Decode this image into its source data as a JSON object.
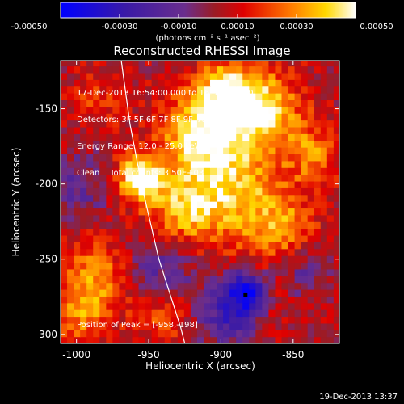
{
  "chart_data": {
    "type": "heatmap",
    "title": "Reconstructed RHESSI Image",
    "xlabel": "Heliocentric X (arcsec)",
    "ylabel": "Heliocentric Y (arcsec)",
    "xlim": [
      -1011,
      -818
    ],
    "ylim": [
      -306,
      -118
    ],
    "x_ticks": [
      -1000,
      -950,
      -900,
      -850
    ],
    "y_ticks": [
      -300,
      -250,
      -200,
      -150
    ],
    "x_tick_labels": [
      "-1000",
      "-950",
      "-900",
      "-850"
    ],
    "y_tick_labels": [
      "-300",
      "-250",
      "-200",
      "-150"
    ],
    "colorbar": {
      "range": [
        -0.0005,
        0.0005
      ],
      "ticks": [
        -0.0005,
        -0.0003,
        -0.0001,
        0.0001,
        0.0003,
        0.0005
      ],
      "tick_labels": [
        "-0.00050",
        "-0.00030",
        "-0.00010",
        "0.00010",
        "0.00030",
        "0.00050"
      ],
      "unit_label": "(photons cm⁻² s⁻¹ asec⁻²)",
      "colormap": "blue-purple-red-orange-yellow-white"
    },
    "info_lines": [
      "17-Dec-2013 16:54:00.000 to 16:56:04.000",
      "Detectors: 3F 5F 6F 7F 8F 9F, Att 0",
      "Energy Range: 12.0 - 25.0 keV",
      "Clean    Total counts: 3.50E+03"
    ],
    "peak_label": "Position of Peak = [-958,-198]",
    "peak_position": [
      -958,
      -198
    ],
    "sources": [
      {
        "x": -958,
        "y": -198,
        "value": 0.0005,
        "sigma": 11
      },
      {
        "x": -913,
        "y": -170,
        "value": 0.00045,
        "sigma": 20
      },
      {
        "x": -873,
        "y": -152,
        "value": 0.00038,
        "sigma": 18
      },
      {
        "x": -898,
        "y": -140,
        "value": 0.00033,
        "sigma": 14
      },
      {
        "x": -928,
        "y": -220,
        "value": 0.00032,
        "sigma": 18
      },
      {
        "x": -888,
        "y": -210,
        "value": 0.00029,
        "sigma": 22
      },
      {
        "x": -858,
        "y": -235,
        "value": 0.00025,
        "sigma": 16
      },
      {
        "x": -838,
        "y": -182,
        "value": 0.00022,
        "sigma": 14
      },
      {
        "x": -990,
        "y": -262,
        "value": 0.00025,
        "sigma": 18
      },
      {
        "x": -1000,
        "y": -290,
        "value": 0.0002,
        "sigma": 14
      },
      {
        "x": -943,
        "y": -288,
        "value": 0.00018,
        "sigma": 14
      },
      {
        "x": -868,
        "y": -275,
        "value": 0.00012,
        "sigma": 12
      },
      {
        "x": -988,
        "y": -147,
        "value": 0.00012,
        "sigma": 14
      },
      {
        "x": -943,
        "y": -256,
        "value": -0.00022,
        "sigma": 18
      },
      {
        "x": -883,
        "y": -274,
        "value": -0.00048,
        "sigma": 10
      },
      {
        "x": -898,
        "y": -290,
        "value": -0.00028,
        "sigma": 14
      },
      {
        "x": -1003,
        "y": -205,
        "value": -0.00018,
        "sigma": 16
      },
      {
        "x": -848,
        "y": -258,
        "value": -0.0002,
        "sigma": 14
      }
    ],
    "limb_curve": [
      [
        -969,
        -118
      ],
      [
        -963,
        -160
      ],
      [
        -955,
        -200
      ],
      [
        -943,
        -250
      ],
      [
        -928,
        -295
      ],
      [
        -925,
        -306
      ]
    ]
  },
  "footer": "19-Dec-2013 13:37"
}
